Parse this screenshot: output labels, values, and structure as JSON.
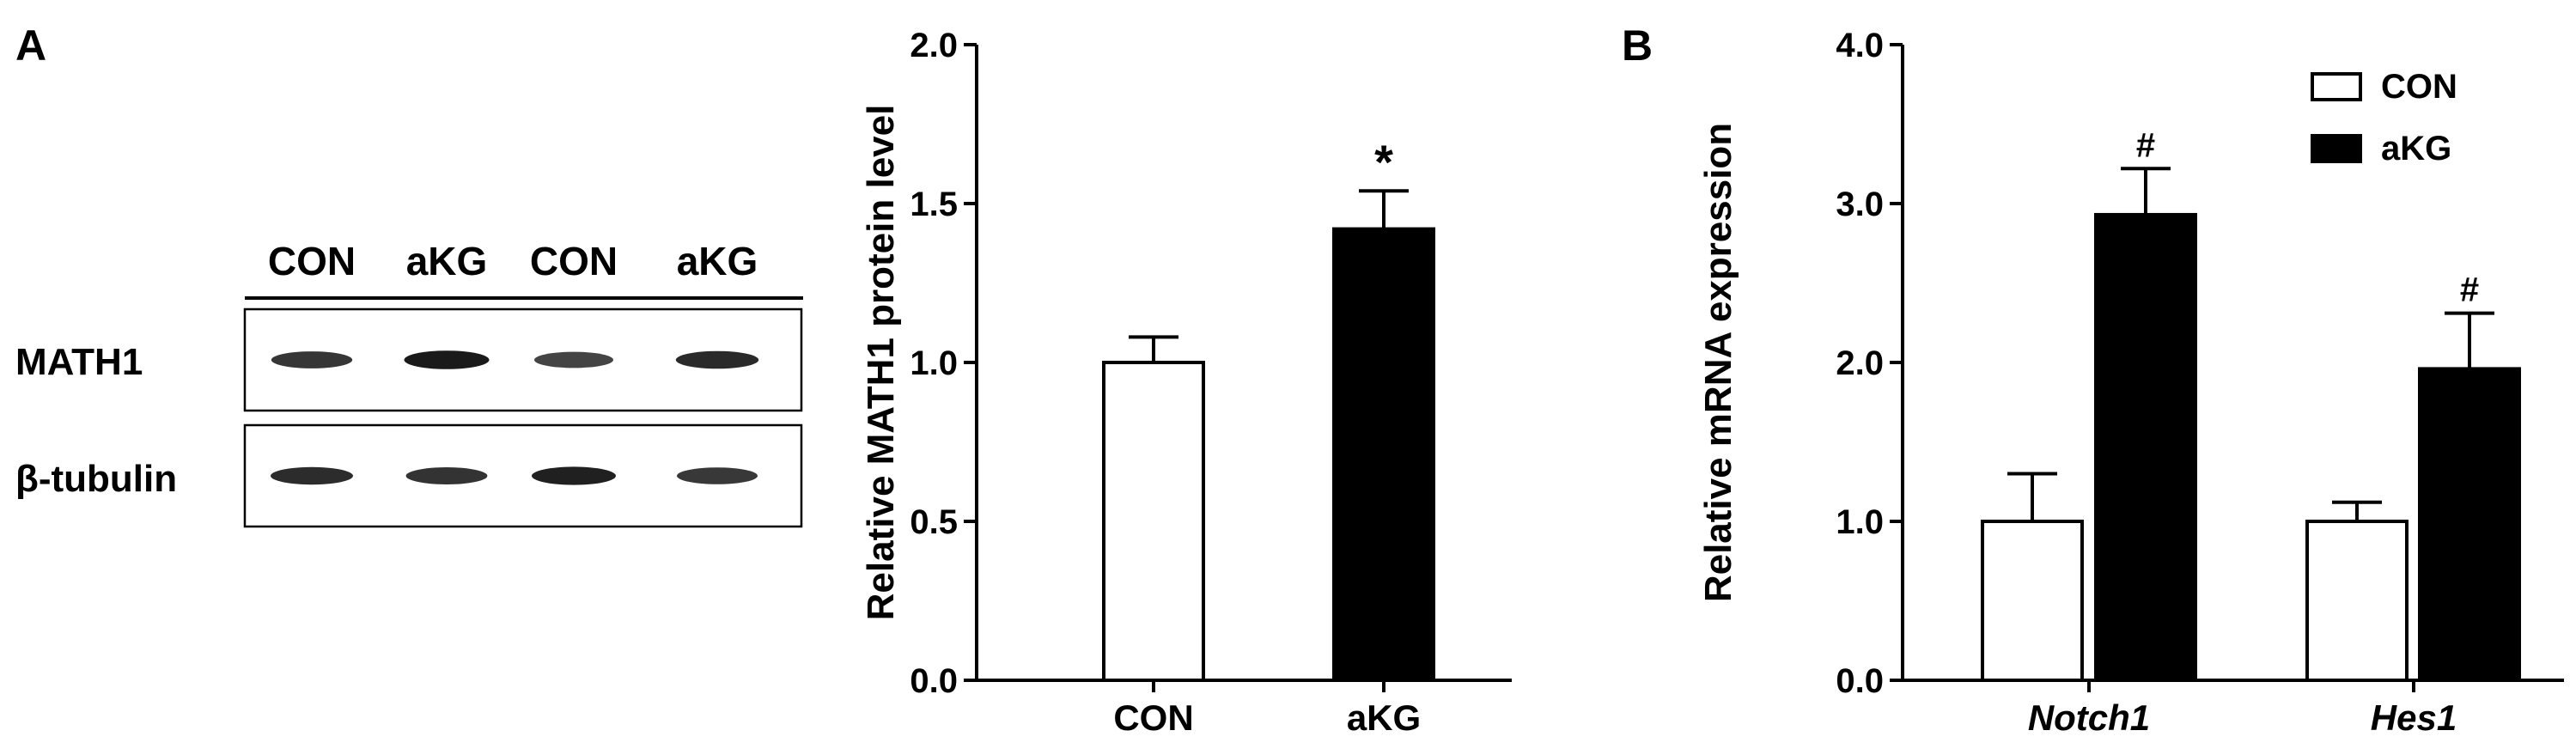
{
  "panels": {
    "a": {
      "letter": "A"
    },
    "b": {
      "letter": "B"
    }
  },
  "blot": {
    "lane_labels": [
      "CON",
      "aKG",
      "CON",
      "aKG"
    ],
    "rows": [
      {
        "label": "MATH1",
        "band_intensity": [
          0.72,
          0.95,
          0.6,
          0.82
        ]
      },
      {
        "label": "β-tubulin",
        "band_intensity": [
          0.8,
          0.74,
          0.9,
          0.7
        ]
      }
    ]
  },
  "chart_data": [
    {
      "type": "bar",
      "categories": [
        "CON",
        "aKG"
      ],
      "values": [
        1.0,
        1.42
      ],
      "errors": [
        0.08,
        0.12
      ],
      "fills": [
        "#ffffff",
        "#000000"
      ],
      "annotations": [
        "",
        "*"
      ],
      "ylabel": "Relative MATH1 protein level",
      "ylim": [
        0,
        2.0
      ],
      "yticks": [
        0.0,
        0.5,
        1.0,
        1.5,
        2.0
      ],
      "ytick_labels": [
        "0.0",
        "0.5",
        "1.0",
        "1.5",
        "2.0"
      ]
    },
    {
      "type": "bar",
      "categories": [
        "Notch1",
        "Hes1"
      ],
      "series": [
        {
          "name": "CON",
          "values": [
            1.0,
            1.0
          ],
          "errors": [
            0.3,
            0.12
          ],
          "color": "#ffffff",
          "annotations": [
            "",
            ""
          ]
        },
        {
          "name": "aKG",
          "values": [
            2.93,
            1.96
          ],
          "errors": [
            0.29,
            0.35
          ],
          "color": "#000000",
          "annotations": [
            "#",
            "#"
          ]
        }
      ],
      "ylabel": "Relative mRNA expression",
      "ylim": [
        0,
        4.0
      ],
      "yticks": [
        0.0,
        1.0,
        2.0,
        3.0,
        4.0
      ],
      "ytick_labels": [
        "0.0",
        "1.0",
        "2.0",
        "3.0",
        "4.0"
      ],
      "legend": "top-right"
    }
  ]
}
